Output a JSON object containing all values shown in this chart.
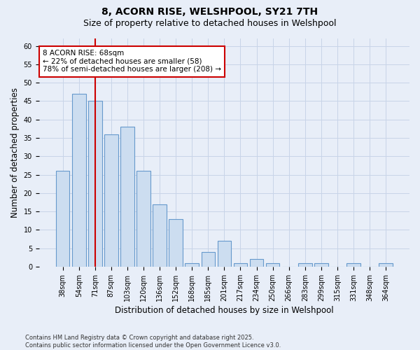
{
  "title": "8, ACORN RISE, WELSHPOOL, SY21 7TH",
  "subtitle": "Size of property relative to detached houses in Welshpool",
  "xlabel": "Distribution of detached houses by size in Welshpool",
  "ylabel": "Number of detached properties",
  "categories": [
    "38sqm",
    "54sqm",
    "71sqm",
    "87sqm",
    "103sqm",
    "120sqm",
    "136sqm",
    "152sqm",
    "168sqm",
    "185sqm",
    "201sqm",
    "217sqm",
    "234sqm",
    "250sqm",
    "266sqm",
    "283sqm",
    "299sqm",
    "315sqm",
    "331sqm",
    "348sqm",
    "364sqm"
  ],
  "values": [
    26,
    47,
    45,
    36,
    38,
    26,
    17,
    13,
    1,
    4,
    7,
    1,
    2,
    1,
    0,
    1,
    1,
    0,
    1,
    0,
    1
  ],
  "bar_color": "#ccddf0",
  "bar_edge_color": "#6699cc",
  "grid_color": "#c8d4e8",
  "background_color": "#e8eef8",
  "property_line_x": 2.0,
  "annotation_text": "8 ACORN RISE: 68sqm\n← 22% of detached houses are smaller (58)\n78% of semi-detached houses are larger (208) →",
  "annotation_box_facecolor": "#ffffff",
  "annotation_box_edgecolor": "#cc0000",
  "ylim_max": 62,
  "yticks": [
    0,
    5,
    10,
    15,
    20,
    25,
    30,
    35,
    40,
    45,
    50,
    55,
    60
  ],
  "footer": "Contains HM Land Registry data © Crown copyright and database right 2025.\nContains public sector information licensed under the Open Government Licence v3.0.",
  "title_fontsize": 10,
  "subtitle_fontsize": 9,
  "axis_label_fontsize": 8.5,
  "tick_fontsize": 7,
  "annotation_fontsize": 7.5,
  "footer_fontsize": 6
}
